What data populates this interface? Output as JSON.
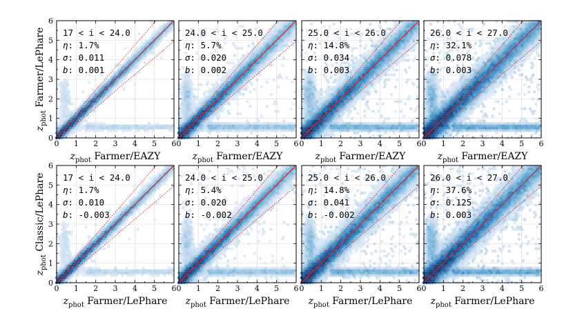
{
  "chart_data": {
    "type": "heatmap",
    "layout": {
      "rows": 2,
      "cols": 4
    },
    "xlim": [
      0,
      6
    ],
    "ylim": [
      0,
      6
    ],
    "x_ticks": [
      0,
      1,
      2,
      3,
      4,
      5,
      6
    ],
    "y_ticks": [
      0,
      1,
      2,
      3,
      4,
      5,
      6
    ],
    "x_tick_labels": [
      "0",
      "1",
      "2",
      "3",
      "4",
      "5",
      "6"
    ],
    "y_tick_labels": [
      "0",
      "1",
      "2",
      "3",
      "4",
      "5",
      "6"
    ],
    "grid": true,
    "colormap": "Blues",
    "one_to_one_line": {
      "color": "#d62728",
      "style": "solid"
    },
    "outlier_bounds": {
      "color": "#d62728",
      "style": "dotted",
      "factor": 0.15
    },
    "y_axis_labels": {
      "row0": {
        "main": "z",
        "sub": "phot",
        "rest": " Farmer/LePhare"
      },
      "row1": {
        "main": "z",
        "sub": "phot",
        "rest": " Classic/LePhare"
      }
    },
    "x_axis_labels": {
      "row0": {
        "main": "z",
        "sub": "phot",
        "rest": " Farmer/EAZY"
      },
      "row1": {
        "main": "z",
        "sub": "phot",
        "rest": " Farmer/LePhare"
      }
    },
    "panels": [
      {
        "row": 0,
        "col": 0,
        "range": "17 < i < 24.0",
        "eta": "1.7%",
        "sigma": "0.011",
        "b": "0.001",
        "density": 0.35
      },
      {
        "row": 0,
        "col": 1,
        "range": "24.0 < i < 25.0",
        "eta": "5.7%",
        "sigma": "0.020",
        "b": "0.002",
        "density": 0.6
      },
      {
        "row": 0,
        "col": 2,
        "range": "25.0 < i < 26.0",
        "eta": "14.8%",
        "sigma": "0.034",
        "b": "0.003",
        "density": 0.85
      },
      {
        "row": 0,
        "col": 3,
        "range": "26.0 < i < 27.0",
        "eta": "32.1%",
        "sigma": "0.078",
        "b": "0.003",
        "density": 1.0
      },
      {
        "row": 1,
        "col": 0,
        "range": "17 < i < 24.0",
        "eta": "1.7%",
        "sigma": "0.010",
        "b": "-0.003",
        "density": 0.35
      },
      {
        "row": 1,
        "col": 1,
        "range": "24.0 < i < 25.0",
        "eta": "5.4%",
        "sigma": "0.020",
        "b": "-0.002",
        "density": 0.6
      },
      {
        "row": 1,
        "col": 2,
        "range": "25.0 < i < 26.0",
        "eta": "14.8%",
        "sigma": "0.041",
        "b": "-0.002",
        "density": 0.85
      },
      {
        "row": 1,
        "col": 3,
        "range": "26.0 < i < 27.0",
        "eta": "37.6%",
        "sigma": "0.125",
        "b": "0.003",
        "density": 1.0
      }
    ],
    "stat_labels": {
      "eta": "η",
      "sigma": "σ",
      "b": "b"
    }
  }
}
